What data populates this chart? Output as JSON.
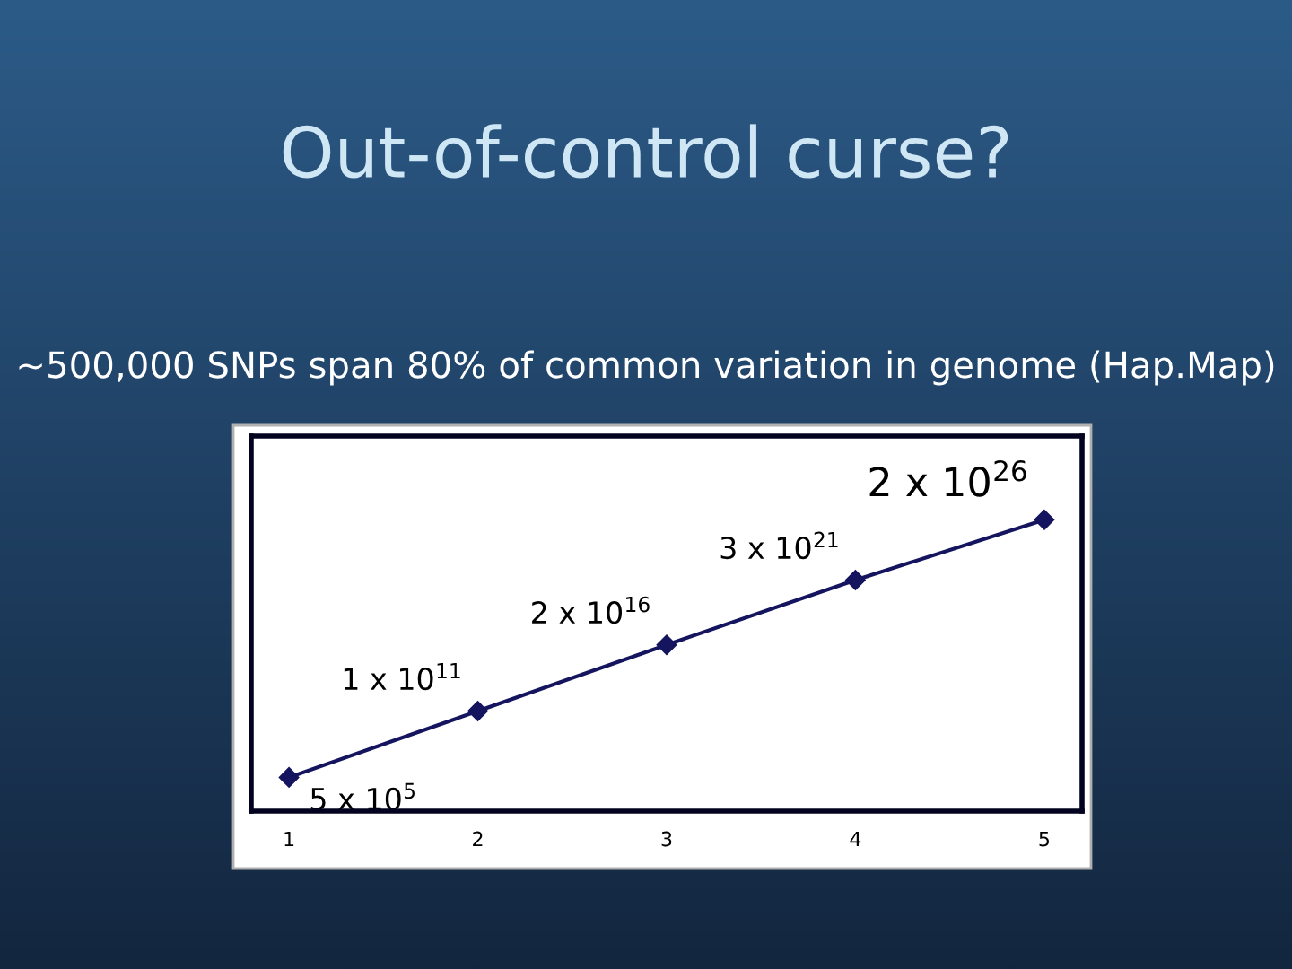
{
  "chart_data": {
    "type": "line",
    "title": "Out-of-control curse?",
    "subtitle": "~500,000 SNPs span 80% of common variation in genome (Hap.Map)",
    "categories": [
      "1",
      "2",
      "3",
      "4",
      "5"
    ],
    "log": "y",
    "ylim": [
      1000,
      1e+33
    ],
    "tick_labels": "x",
    "series": [
      {
        "color": "#14145f",
        "values": [
          500000,
          100000000000.0,
          2e+16,
          3e+21,
          2e+26
        ],
        "value_labels": [
          "5 x 10$^{5}$",
          "1 x 10$^{11}$",
          "2 x 10$^{16}$",
          "3 x 10$^{21}$",
          "2 x 10$^{26}$"
        ]
      }
    ],
    "marker": "diamond",
    "line_style": "solid",
    "grid": false,
    "legend": false
  }
}
